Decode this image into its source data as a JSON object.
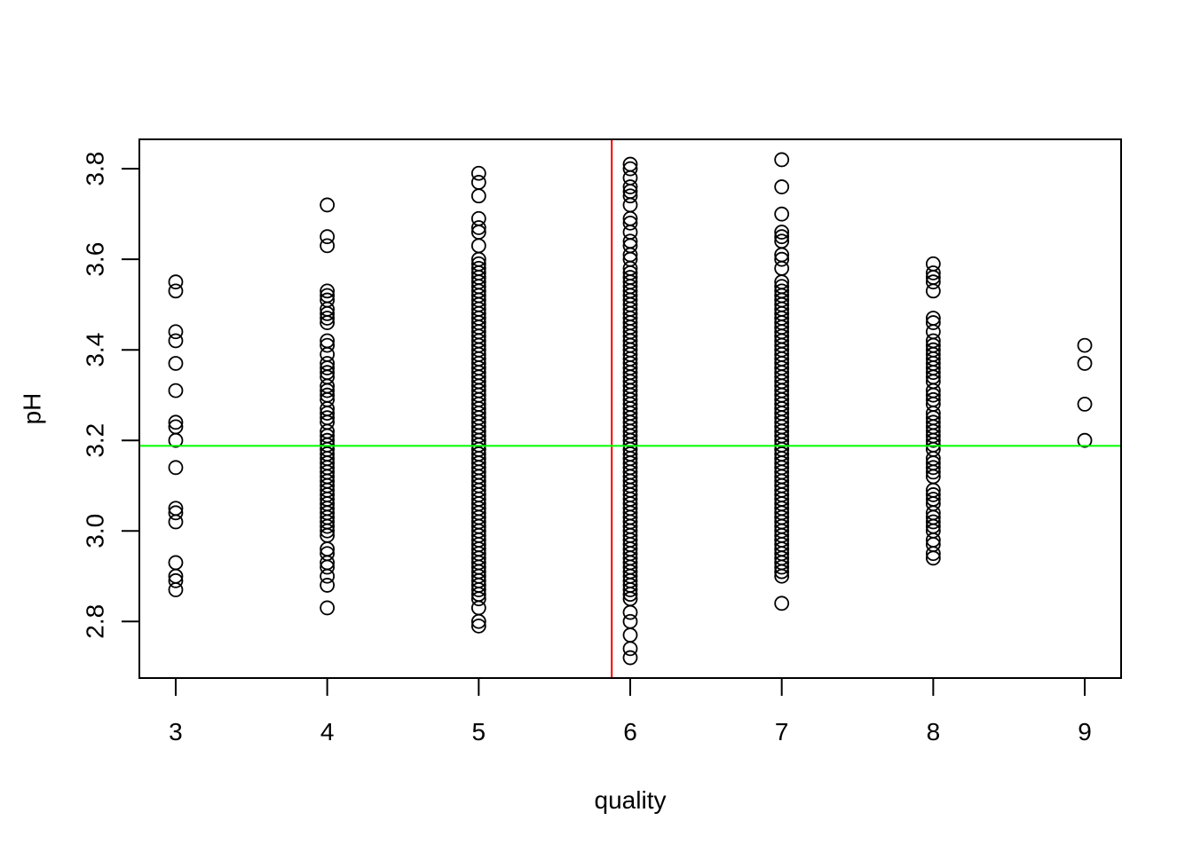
{
  "chart_data": {
    "type": "scatter",
    "title": "",
    "xlabel": "quality",
    "ylabel": "pH",
    "xlim": [
      2.76,
      9.24
    ],
    "ylim": [
      2.675,
      3.865
    ],
    "x_ticks": [
      "3",
      "4",
      "5",
      "6",
      "7",
      "8",
      "9"
    ],
    "y_ticks": [
      "2.8",
      "3.0",
      "3.2",
      "3.4",
      "3.6",
      "3.8"
    ],
    "grid": false,
    "marker": "open-circle",
    "colors": {
      "points": "#000000",
      "vline": "#ff0000",
      "hline": "#00ff00"
    },
    "reference_lines": [
      {
        "orientation": "vertical",
        "value": 5.878,
        "color": "#ff0000"
      },
      {
        "orientation": "horizontal",
        "value": 3.188,
        "color": "#00ff00"
      }
    ],
    "points": [
      {
        "x": 3,
        "y": [
          2.87,
          2.89,
          2.9,
          2.93,
          3.02,
          3.04,
          3.05,
          3.14,
          3.2,
          3.23,
          3.24,
          3.31,
          3.37,
          3.42,
          3.44,
          3.53,
          3.55
        ]
      },
      {
        "x": 4,
        "y": [
          2.83,
          2.88,
          2.9,
          2.92,
          2.93,
          2.95,
          2.96,
          2.99,
          3.0,
          3.01,
          3.02,
          3.03,
          3.04,
          3.05,
          3.06,
          3.07,
          3.08,
          3.09,
          3.1,
          3.11,
          3.12,
          3.13,
          3.14,
          3.15,
          3.16,
          3.17,
          3.18,
          3.19,
          3.2,
          3.21,
          3.22,
          3.24,
          3.25,
          3.26,
          3.27,
          3.29,
          3.3,
          3.31,
          3.32,
          3.34,
          3.35,
          3.36,
          3.37,
          3.39,
          3.41,
          3.42,
          3.46,
          3.47,
          3.48,
          3.49,
          3.51,
          3.52,
          3.53,
          3.63,
          3.65,
          3.72
        ]
      },
      {
        "x": 5,
        "y": [
          2.79,
          2.8,
          2.83,
          2.85,
          2.86,
          2.87,
          2.88,
          2.89,
          2.9,
          2.91,
          2.92,
          2.93,
          2.94,
          2.95,
          2.96,
          2.97,
          2.98,
          2.99,
          3.0,
          3.01,
          3.02,
          3.03,
          3.04,
          3.05,
          3.06,
          3.07,
          3.08,
          3.09,
          3.1,
          3.11,
          3.12,
          3.13,
          3.14,
          3.15,
          3.16,
          3.17,
          3.18,
          3.19,
          3.2,
          3.21,
          3.22,
          3.23,
          3.24,
          3.25,
          3.26,
          3.27,
          3.28,
          3.29,
          3.3,
          3.31,
          3.32,
          3.33,
          3.34,
          3.35,
          3.36,
          3.37,
          3.38,
          3.39,
          3.4,
          3.41,
          3.42,
          3.43,
          3.44,
          3.45,
          3.46,
          3.47,
          3.48,
          3.49,
          3.5,
          3.51,
          3.52,
          3.53,
          3.54,
          3.55,
          3.56,
          3.57,
          3.58,
          3.59,
          3.6,
          3.63,
          3.66,
          3.67,
          3.69,
          3.74,
          3.77,
          3.79
        ]
      },
      {
        "x": 6,
        "y": [
          2.72,
          2.74,
          2.77,
          2.8,
          2.82,
          2.85,
          2.86,
          2.87,
          2.88,
          2.89,
          2.9,
          2.91,
          2.92,
          2.93,
          2.94,
          2.95,
          2.96,
          2.97,
          2.98,
          2.99,
          3.0,
          3.01,
          3.02,
          3.03,
          3.04,
          3.05,
          3.06,
          3.07,
          3.08,
          3.09,
          3.1,
          3.11,
          3.12,
          3.13,
          3.14,
          3.15,
          3.16,
          3.17,
          3.18,
          3.19,
          3.2,
          3.21,
          3.22,
          3.23,
          3.24,
          3.25,
          3.26,
          3.27,
          3.28,
          3.29,
          3.3,
          3.31,
          3.32,
          3.33,
          3.34,
          3.35,
          3.36,
          3.37,
          3.38,
          3.39,
          3.4,
          3.41,
          3.42,
          3.43,
          3.44,
          3.45,
          3.46,
          3.47,
          3.48,
          3.49,
          3.5,
          3.51,
          3.52,
          3.53,
          3.54,
          3.55,
          3.56,
          3.57,
          3.58,
          3.6,
          3.61,
          3.63,
          3.64,
          3.66,
          3.68,
          3.69,
          3.72,
          3.74,
          3.75,
          3.76,
          3.78,
          3.8,
          3.81
        ]
      },
      {
        "x": 7,
        "y": [
          2.84,
          2.9,
          2.91,
          2.92,
          2.93,
          2.94,
          2.95,
          2.96,
          2.97,
          2.98,
          2.99,
          3.0,
          3.01,
          3.02,
          3.03,
          3.04,
          3.05,
          3.06,
          3.07,
          3.08,
          3.09,
          3.1,
          3.11,
          3.12,
          3.13,
          3.14,
          3.15,
          3.16,
          3.17,
          3.18,
          3.19,
          3.2,
          3.21,
          3.22,
          3.23,
          3.24,
          3.25,
          3.26,
          3.27,
          3.28,
          3.29,
          3.3,
          3.31,
          3.32,
          3.33,
          3.34,
          3.35,
          3.36,
          3.37,
          3.38,
          3.39,
          3.4,
          3.41,
          3.42,
          3.43,
          3.44,
          3.45,
          3.46,
          3.47,
          3.48,
          3.49,
          3.5,
          3.51,
          3.52,
          3.53,
          3.54,
          3.55,
          3.58,
          3.6,
          3.61,
          3.64,
          3.65,
          3.66,
          3.7,
          3.76,
          3.82
        ]
      },
      {
        "x": 8,
        "y": [
          2.94,
          2.95,
          2.97,
          2.98,
          3.0,
          3.01,
          3.02,
          3.03,
          3.04,
          3.06,
          3.07,
          3.08,
          3.09,
          3.12,
          3.13,
          3.14,
          3.15,
          3.16,
          3.18,
          3.19,
          3.2,
          3.21,
          3.22,
          3.23,
          3.24,
          3.25,
          3.26,
          3.28,
          3.29,
          3.3,
          3.31,
          3.33,
          3.34,
          3.35,
          3.36,
          3.37,
          3.38,
          3.39,
          3.4,
          3.41,
          3.42,
          3.44,
          3.46,
          3.47,
          3.53,
          3.55,
          3.56,
          3.57,
          3.59
        ]
      },
      {
        "x": 9,
        "y": [
          3.2,
          3.28,
          3.37,
          3.41
        ]
      }
    ]
  }
}
